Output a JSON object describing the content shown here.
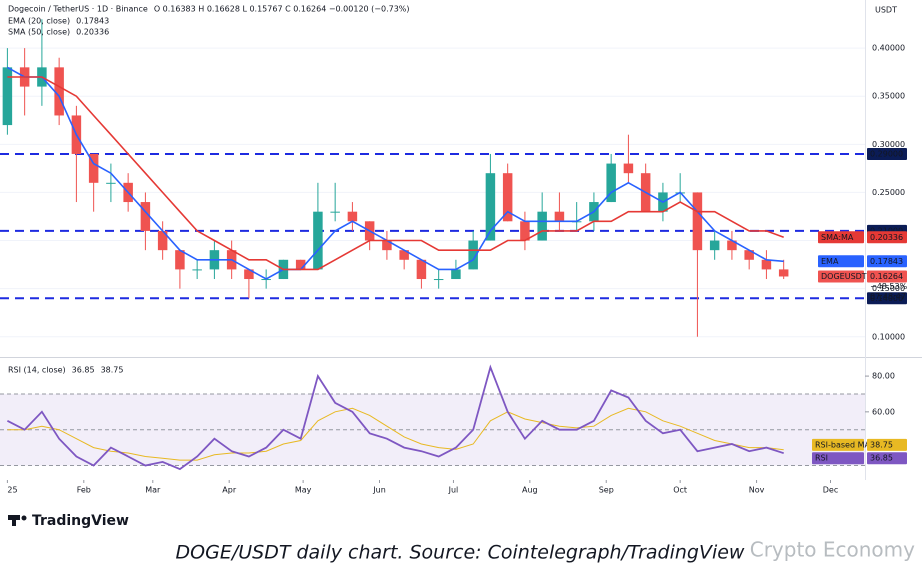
{
  "chart_data": [
    {
      "type": "candlestick",
      "title": "Dogecoin / TetherUS · 1D · Binance",
      "ohlc_text": "O 0.16383 H 0.16628 L 0.15767 C 0.16264 −0.00120 (−0.73%)",
      "currency": "USDT",
      "symbol": "DOGEUSDT",
      "change_label": "−48.53%",
      "countdown": "07:48:47",
      "x": [
        0,
        7,
        14,
        21,
        28,
        35,
        42,
        49,
        56,
        63,
        70,
        77,
        84,
        91,
        98,
        105,
        112,
        119,
        126,
        133,
        140,
        147,
        154,
        161,
        168,
        175,
        182,
        189,
        196,
        203,
        210,
        217,
        224,
        231,
        238,
        245,
        252,
        259,
        266,
        273,
        280,
        287,
        294,
        301,
        308,
        315
      ],
      "open": [
        0.32,
        0.38,
        0.36,
        0.38,
        0.33,
        0.29,
        0.26,
        0.26,
        0.24,
        0.21,
        0.19,
        0.17,
        0.17,
        0.19,
        0.17,
        0.16,
        0.16,
        0.18,
        0.17,
        0.23,
        0.23,
        0.22,
        0.2,
        0.19,
        0.18,
        0.16,
        0.16,
        0.17,
        0.2,
        0.27,
        0.22,
        0.2,
        0.23,
        0.22,
        0.22,
        0.24,
        0.28,
        0.27,
        0.23,
        0.25,
        0.25,
        0.19,
        0.2,
        0.19,
        0.18,
        0.17
      ],
      "high": [
        0.4,
        0.4,
        0.43,
        0.39,
        0.34,
        0.29,
        0.28,
        0.27,
        0.25,
        0.22,
        0.19,
        0.18,
        0.2,
        0.2,
        0.17,
        0.17,
        0.18,
        0.18,
        0.26,
        0.26,
        0.24,
        0.22,
        0.21,
        0.19,
        0.18,
        0.17,
        0.18,
        0.21,
        0.29,
        0.28,
        0.23,
        0.25,
        0.25,
        0.24,
        0.25,
        0.29,
        0.31,
        0.28,
        0.26,
        0.27,
        0.25,
        0.21,
        0.21,
        0.19,
        0.19,
        0.18
      ],
      "low": [
        0.31,
        0.33,
        0.34,
        0.32,
        0.24,
        0.23,
        0.24,
        0.23,
        0.19,
        0.18,
        0.15,
        0.16,
        0.16,
        0.16,
        0.14,
        0.15,
        0.16,
        0.17,
        0.17,
        0.22,
        0.21,
        0.19,
        0.18,
        0.17,
        0.15,
        0.15,
        0.16,
        0.17,
        0.2,
        0.22,
        0.19,
        0.2,
        0.21,
        0.21,
        0.21,
        0.24,
        0.26,
        0.23,
        0.22,
        0.24,
        0.1,
        0.18,
        0.18,
        0.17,
        0.16,
        0.16
      ],
      "close": [
        0.38,
        0.36,
        0.38,
        0.33,
        0.29,
        0.26,
        0.26,
        0.24,
        0.21,
        0.19,
        0.17,
        0.17,
        0.19,
        0.17,
        0.16,
        0.16,
        0.18,
        0.17,
        0.23,
        0.23,
        0.22,
        0.2,
        0.19,
        0.18,
        0.16,
        0.16,
        0.17,
        0.2,
        0.27,
        0.22,
        0.2,
        0.23,
        0.22,
        0.22,
        0.24,
        0.28,
        0.27,
        0.23,
        0.25,
        0.25,
        0.19,
        0.2,
        0.19,
        0.18,
        0.17,
        0.16264
      ],
      "up_color": "#26a69a",
      "down_color": "#ef5350",
      "series": [
        {
          "name": "EMA (20, close)",
          "short": "EMA",
          "color": "#2962ff",
          "values": [
            0.38,
            0.37,
            0.37,
            0.35,
            0.31,
            0.28,
            0.27,
            0.25,
            0.23,
            0.21,
            0.19,
            0.18,
            0.18,
            0.18,
            0.17,
            0.16,
            0.17,
            0.17,
            0.19,
            0.21,
            0.22,
            0.21,
            0.2,
            0.19,
            0.18,
            0.17,
            0.17,
            0.18,
            0.21,
            0.23,
            0.22,
            0.22,
            0.22,
            0.22,
            0.23,
            0.25,
            0.26,
            0.25,
            0.24,
            0.25,
            0.23,
            0.21,
            0.2,
            0.19,
            0.18,
            0.17843
          ]
        },
        {
          "name": "SMA (50, close)",
          "short": "SMA:MA",
          "color": "#e53935",
          "values": [
            0.37,
            0.37,
            0.37,
            0.36,
            0.35,
            0.33,
            0.31,
            0.29,
            0.27,
            0.25,
            0.23,
            0.21,
            0.2,
            0.19,
            0.18,
            0.18,
            0.17,
            0.17,
            0.17,
            0.18,
            0.19,
            0.2,
            0.2,
            0.2,
            0.2,
            0.19,
            0.19,
            0.19,
            0.19,
            0.2,
            0.2,
            0.21,
            0.21,
            0.21,
            0.22,
            0.22,
            0.23,
            0.23,
            0.23,
            0.24,
            0.23,
            0.23,
            0.22,
            0.21,
            0.21,
            0.20336
          ]
        }
      ],
      "levels": [
        {
          "value": 0.29,
          "label": "0.29000"
        },
        {
          "value": 0.21,
          "label": "0.21000"
        },
        {
          "value": 0.14,
          "label": "0.14000"
        }
      ],
      "level_color": "#1e2be0",
      "xlim": [
        -3,
        348
      ],
      "ylim": [
        0.08,
        0.45
      ],
      "yticks": [
        {
          "value": 0.1,
          "label": "0.10000"
        },
        {
          "value": 0.15,
          "label": "0.15000"
        },
        {
          "value": 0.2,
          "label": "0.20000"
        },
        {
          "value": 0.25,
          "label": "0.25000"
        },
        {
          "value": 0.3,
          "label": "0.30000"
        },
        {
          "value": 0.35,
          "label": "0.35000"
        },
        {
          "value": 0.4,
          "label": "0.40000"
        }
      ],
      "grid": true
    },
    {
      "type": "line",
      "title": "RSI (14, close)",
      "x": [
        0,
        7,
        14,
        21,
        28,
        35,
        42,
        49,
        56,
        63,
        70,
        77,
        84,
        91,
        98,
        105,
        112,
        119,
        126,
        133,
        140,
        147,
        154,
        161,
        168,
        175,
        182,
        189,
        196,
        203,
        210,
        217,
        224,
        231,
        238,
        245,
        252,
        259,
        266,
        273,
        280,
        287,
        294,
        301,
        308,
        315
      ],
      "series": [
        {
          "name": "RSI",
          "color": "#7e57c2",
          "values": [
            55,
            50,
            60,
            45,
            35,
            30,
            40,
            35,
            30,
            32,
            28,
            35,
            45,
            38,
            35,
            40,
            50,
            45,
            80,
            65,
            60,
            48,
            45,
            40,
            38,
            35,
            40,
            50,
            85,
            60,
            45,
            55,
            50,
            50,
            55,
            72,
            68,
            55,
            48,
            50,
            38,
            40,
            42,
            38,
            40,
            36.85
          ]
        },
        {
          "name": "RSI-based MA",
          "color": "#e8b923",
          "values": [
            50,
            50,
            52,
            50,
            45,
            40,
            38,
            37,
            35,
            34,
            33,
            33,
            36,
            37,
            37,
            38,
            42,
            44,
            55,
            60,
            62,
            58,
            52,
            46,
            42,
            40,
            39,
            42,
            55,
            60,
            56,
            54,
            52,
            51,
            52,
            58,
            62,
            60,
            55,
            52,
            48,
            44,
            42,
            40,
            40,
            38.75
          ]
        }
      ],
      "band": [
        30,
        70
      ],
      "midline": 50,
      "xlim": [
        -3,
        348
      ],
      "ylim": [
        23,
        89
      ],
      "yticks": [
        {
          "value": 60,
          "label": "60.00"
        },
        {
          "value": 80,
          "label": "80.00"
        }
      ],
      "xticks": [
        {
          "value": 0,
          "label": "25"
        },
        {
          "value": 31,
          "label": "Feb"
        },
        {
          "value": 59,
          "label": "Mar"
        },
        {
          "value": 90,
          "label": "Apr"
        },
        {
          "value": 120,
          "label": "May"
        },
        {
          "value": 151,
          "label": "Jun"
        },
        {
          "value": 181,
          "label": "Jul"
        },
        {
          "value": 212,
          "label": "Aug"
        },
        {
          "value": 243,
          "label": "Sep"
        },
        {
          "value": 273,
          "label": "Oct"
        },
        {
          "value": 304,
          "label": "Nov"
        },
        {
          "value": 334,
          "label": "Dec"
        }
      ]
    }
  ],
  "page": {
    "logo": "TradingView",
    "caption": "DOGE/USDT daily chart. Source: Cointelegraph/TradingView",
    "watermark": "Crypto Economy"
  }
}
